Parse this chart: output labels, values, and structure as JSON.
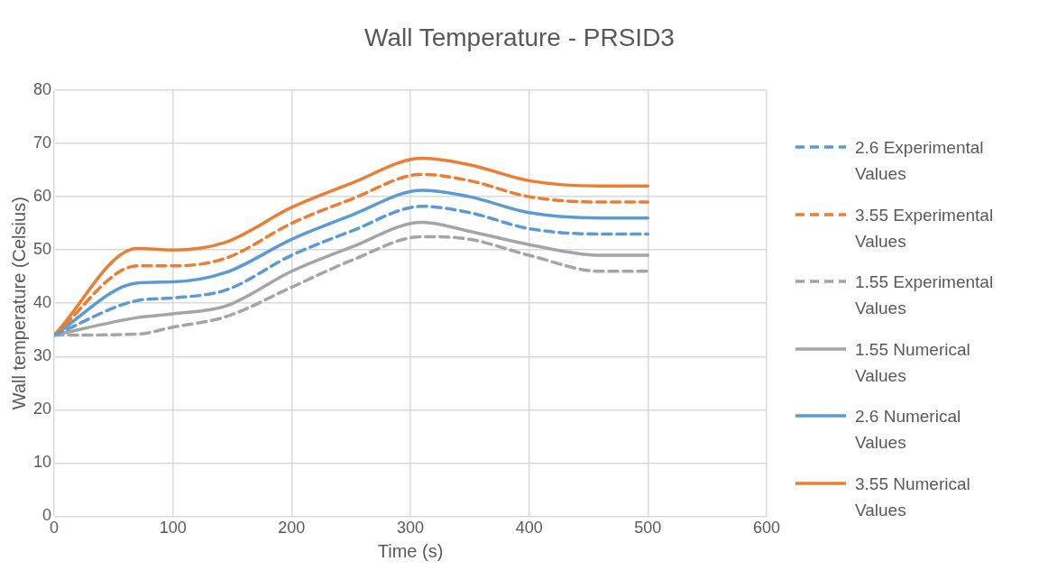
{
  "chart_data": {
    "type": "line",
    "title": "Wall Temperature - PRSID3",
    "xlabel": "Time (s)",
    "ylabel": "Wall temperature (Celsius)",
    "x": [
      0,
      70,
      100,
      145,
      200,
      250,
      310,
      350,
      400,
      460,
      500
    ],
    "series": [
      {
        "name": "2.6 Experimental Values",
        "color": "#5b9bd5",
        "line_style": "dashed",
        "values": [
          34,
          40.5,
          41,
          42.5,
          49,
          53.5,
          58.2,
          57,
          54,
          53,
          53
        ]
      },
      {
        "name": "3.55 Experimental Values",
        "color": "#ed7d31",
        "line_style": "dashed",
        "values": [
          34,
          47,
          47,
          48.5,
          55,
          59.5,
          64.2,
          63,
          60,
          59,
          59
        ]
      },
      {
        "name": "1.55 Experimental Values",
        "color": "#a5a5a5",
        "line_style": "dashed",
        "values": [
          34,
          34.2,
          35.5,
          37.5,
          43,
          48,
          52.5,
          52,
          49,
          46,
          46
        ]
      },
      {
        "name": "1.55 Numerical Values",
        "color": "#a5a5a5",
        "line_style": "solid",
        "values": [
          34,
          37.3,
          38,
          39.5,
          46,
          50.5,
          55.2,
          53.5,
          51,
          49,
          49
        ]
      },
      {
        "name": "2.6 Numerical Values",
        "color": "#5b9bd5",
        "line_style": "solid",
        "values": [
          34,
          43.8,
          44,
          45.8,
          52,
          56.5,
          61.2,
          60,
          57,
          56,
          56
        ]
      },
      {
        "name": "3.55 Numerical Values",
        "color": "#ed7d31",
        "line_style": "solid",
        "values": [
          34,
          50.3,
          50,
          51.5,
          58,
          62.5,
          67.2,
          66,
          63,
          62,
          62
        ]
      }
    ],
    "xlim": [
      0,
      600
    ],
    "xticks": [
      0,
      100,
      200,
      300,
      400,
      500,
      600
    ],
    "ylim": [
      0,
      80
    ],
    "yticks": [
      0,
      10,
      20,
      30,
      40,
      50,
      60,
      70,
      80
    ],
    "grid": true,
    "legend": "right",
    "marker": "none"
  }
}
